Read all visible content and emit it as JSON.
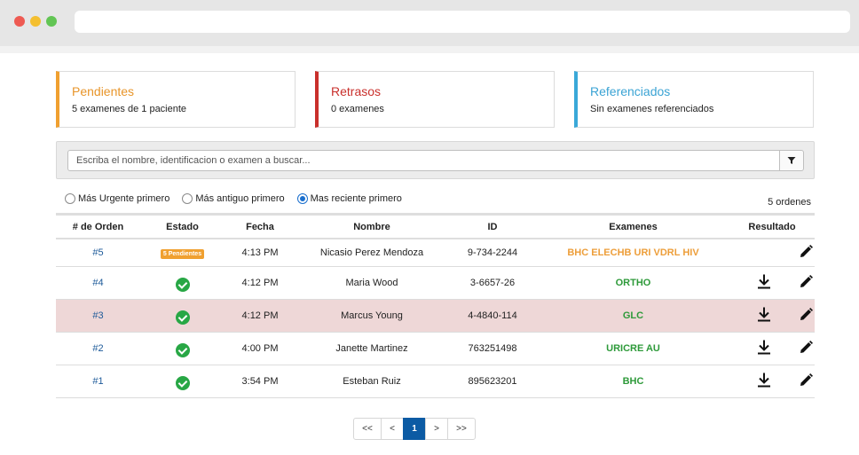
{
  "summary": {
    "pendientes": {
      "title": "Pendientes",
      "subtitle": "5 examenes de 1 paciente",
      "color": "#e8952a"
    },
    "retrasos": {
      "title": "Retrasos",
      "subtitle": "0 examenes",
      "color": "#c9302c"
    },
    "referenciados": {
      "title": "Referenciados",
      "subtitle": "Sin examenes referenciados",
      "color": "#3aa3d4"
    }
  },
  "search": {
    "placeholder": "Escriba el nombre, identificacion o examen a buscar...",
    "value": "",
    "filter_icon": "filter-icon"
  },
  "sort": {
    "options": [
      {
        "label": "Más Urgente primero",
        "checked": false
      },
      {
        "label": "Más antiguo primero",
        "checked": false
      },
      {
        "label": "Mas reciente primero",
        "checked": true
      }
    ]
  },
  "order_count": "5 ordenes",
  "table": {
    "headers": {
      "orden": "# de Orden",
      "estado": "Estado",
      "fecha": "Fecha",
      "nombre": "Nombre",
      "id": "ID",
      "examenes": "Examenes",
      "resultado": "Resultado"
    },
    "rows": [
      {
        "orden": "#5",
        "estado": "5 Pendientes",
        "estado_type": "pending",
        "fecha": "4:13 PM",
        "nombre": "Nicasio Perez Mendoza",
        "id": "9-734-2244",
        "examenes": "BHC ELECHB URI VDRL HIV",
        "exam_status": "pending",
        "download": false,
        "edit": true
      },
      {
        "orden": "#4",
        "estado": "",
        "estado_type": "done",
        "fecha": "4:12 PM",
        "nombre": "Maria Wood",
        "id": "3-6657-26",
        "examenes": "ORTHO",
        "exam_status": "done",
        "download": true,
        "edit": true
      },
      {
        "orden": "#3",
        "estado": "",
        "estado_type": "done",
        "fecha": "4:12 PM",
        "nombre": "Marcus Young",
        "id": "4-4840-114",
        "examenes": "GLC",
        "exam_status": "done",
        "download": true,
        "edit": true,
        "highlighted": true
      },
      {
        "orden": "#2",
        "estado": "",
        "estado_type": "done",
        "fecha": "4:00 PM",
        "nombre": "Janette Martinez",
        "id": "763251498",
        "examenes": "URICRE AU",
        "exam_status": "done",
        "download": true,
        "edit": true
      },
      {
        "orden": "#1",
        "estado": "",
        "estado_type": "done",
        "fecha": "3:54 PM",
        "nombre": "Esteban Ruiz",
        "id": "895623201",
        "examenes": "BHC",
        "exam_status": "done",
        "download": true,
        "edit": true
      }
    ]
  },
  "pagination": {
    "first": "<<",
    "prev": "<",
    "current": "1",
    "next": ">",
    "last": ">>"
  }
}
